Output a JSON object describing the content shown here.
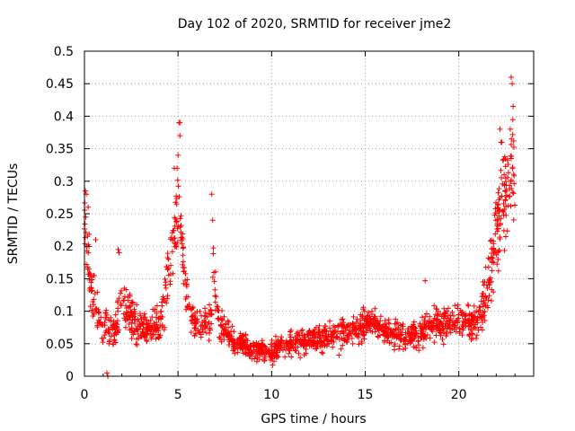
{
  "chart_data": {
    "type": "scatter",
    "title": "Day 102 of 2020, SRMTID for receiver jme2",
    "xlabel": "GPS time / hours",
    "ylabel": "SRMTID / TECUs",
    "xlim": [
      0,
      24
    ],
    "ylim": [
      0,
      0.5
    ],
    "x_ticks": [
      0,
      5,
      10,
      15,
      20
    ],
    "x_tick_labels": [
      "0",
      "5",
      "10",
      "15",
      "20"
    ],
    "y_ticks": [
      0,
      0.05,
      0.1,
      0.15,
      0.2,
      0.25,
      0.3,
      0.35,
      0.4,
      0.45,
      0.5
    ],
    "y_tick_labels": [
      "0",
      "0.05",
      "0.1",
      "0.15",
      "0.2",
      "0.25",
      "0.3",
      "0.35",
      "0.4",
      "0.45",
      "0.5"
    ],
    "grid": true,
    "marker": "+",
    "color": "#ff0000",
    "series": [
      {
        "name": "SRMTID",
        "trend_hours": [
          0.0,
          0.15,
          0.4,
          0.8,
          1.2,
          1.6,
          2.0,
          2.5,
          3.0,
          3.5,
          4.0,
          4.3,
          4.6,
          4.9,
          5.05,
          5.25,
          5.6,
          6.0,
          6.4,
          6.75,
          6.9,
          7.2,
          7.6,
          8.0,
          8.5,
          9.0,
          9.5,
          10.0,
          10.5,
          11.0,
          12.0,
          13.0,
          14.0,
          15.0,
          15.3,
          16.0,
          17.0,
          18.0,
          18.5,
          19.0,
          20.0,
          20.5,
          21.0,
          21.5,
          22.0,
          22.4,
          22.7,
          23.0
        ],
        "trend_tecu": [
          0.24,
          0.2,
          0.12,
          0.09,
          0.07,
          0.07,
          0.12,
          0.09,
          0.07,
          0.07,
          0.08,
          0.12,
          0.19,
          0.24,
          0.28,
          0.17,
          0.1,
          0.08,
          0.08,
          0.09,
          0.16,
          0.08,
          0.07,
          0.05,
          0.05,
          0.04,
          0.04,
          0.035,
          0.05,
          0.05,
          0.055,
          0.06,
          0.065,
          0.08,
          0.09,
          0.07,
          0.06,
          0.065,
          0.08,
          0.08,
          0.085,
          0.08,
          0.085,
          0.13,
          0.22,
          0.28,
          0.3,
          0.3
        ],
        "spread_tecu": [
          0.04,
          0.05,
          0.04,
          0.025,
          0.025,
          0.025,
          0.04,
          0.03,
          0.025,
          0.025,
          0.025,
          0.04,
          0.05,
          0.06,
          0.07,
          0.05,
          0.03,
          0.025,
          0.025,
          0.03,
          0.05,
          0.025,
          0.02,
          0.02,
          0.015,
          0.015,
          0.015,
          0.015,
          0.02,
          0.02,
          0.02,
          0.02,
          0.02,
          0.025,
          0.025,
          0.02,
          0.02,
          0.02,
          0.025,
          0.025,
          0.025,
          0.025,
          0.03,
          0.04,
          0.07,
          0.08,
          0.08,
          0.08
        ],
        "highlights": [
          {
            "x": 0.05,
            "y": 0.285
          },
          {
            "x": 0.1,
            "y": 0.28
          },
          {
            "x": 0.2,
            "y": 0.26
          },
          {
            "x": 0.6,
            "y": 0.21
          },
          {
            "x": 1.2,
            "y": 0.005
          },
          {
            "x": 1.25,
            "y": 0.0
          },
          {
            "x": 1.8,
            "y": 0.195
          },
          {
            "x": 1.85,
            "y": 0.19
          },
          {
            "x": 4.8,
            "y": 0.32
          },
          {
            "x": 4.95,
            "y": 0.32
          },
          {
            "x": 5.0,
            "y": 0.34
          },
          {
            "x": 5.05,
            "y": 0.39
          },
          {
            "x": 5.1,
            "y": 0.39
          },
          {
            "x": 5.1,
            "y": 0.37
          },
          {
            "x": 6.8,
            "y": 0.28
          },
          {
            "x": 6.85,
            "y": 0.24
          },
          {
            "x": 18.2,
            "y": 0.147
          },
          {
            "x": 22.2,
            "y": 0.38
          },
          {
            "x": 22.3,
            "y": 0.36
          },
          {
            "x": 22.8,
            "y": 0.46
          },
          {
            "x": 22.85,
            "y": 0.45
          },
          {
            "x": 22.9,
            "y": 0.415
          },
          {
            "x": 22.75,
            "y": 0.38
          },
          {
            "x": 22.8,
            "y": 0.335
          }
        ]
      }
    ]
  }
}
